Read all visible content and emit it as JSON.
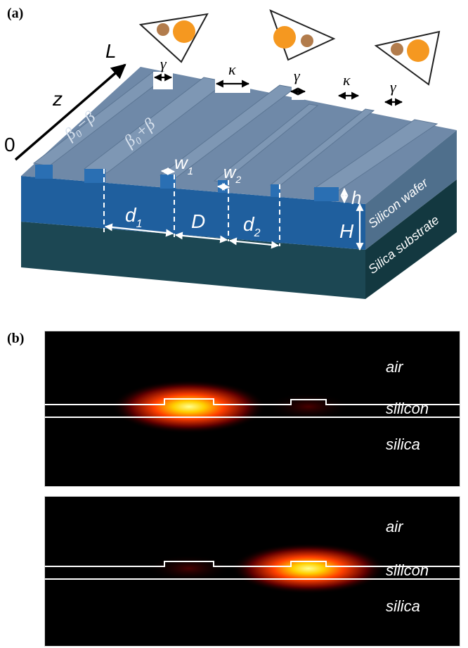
{
  "panel_a": {
    "label": "(a)",
    "axis_start": "0",
    "axis_end": "L",
    "axis_name": "z",
    "coupling_labels": [
      "γ",
      "κ",
      "γ",
      "κ",
      "γ"
    ],
    "propagation_left": "β₀−β",
    "propagation_right": "β₀+β",
    "dim_w1": "w",
    "dim_w1_sub": "1",
    "dim_w2": "w",
    "dim_w2_sub": "2",
    "dim_d1": "d",
    "dim_d1_sub": "1",
    "dim_D": "D",
    "dim_d2": "d",
    "dim_d2_sub": "2",
    "dim_h": "h",
    "dim_H": "H",
    "layer_wafer": "Silicon wafer",
    "layer_substrate": "Silica substrate",
    "colors": {
      "top_surface": "#6f89a8",
      "wafer_front": "#1f5f9e",
      "substrate_front": "#1c4753",
      "substrate_side": "#12333c",
      "circle_orange": "#f59820",
      "circle_brown": "#b27c4c"
    }
  },
  "panel_b": {
    "label": "(b)",
    "fields": [
      {
        "label_air": "air",
        "label_silicon": "silicon",
        "label_silica": "silica",
        "hot_waveguide": "left"
      },
      {
        "label_air": "air",
        "label_silicon": "silicon",
        "label_silica": "silica",
        "hot_waveguide": "right"
      }
    ]
  }
}
